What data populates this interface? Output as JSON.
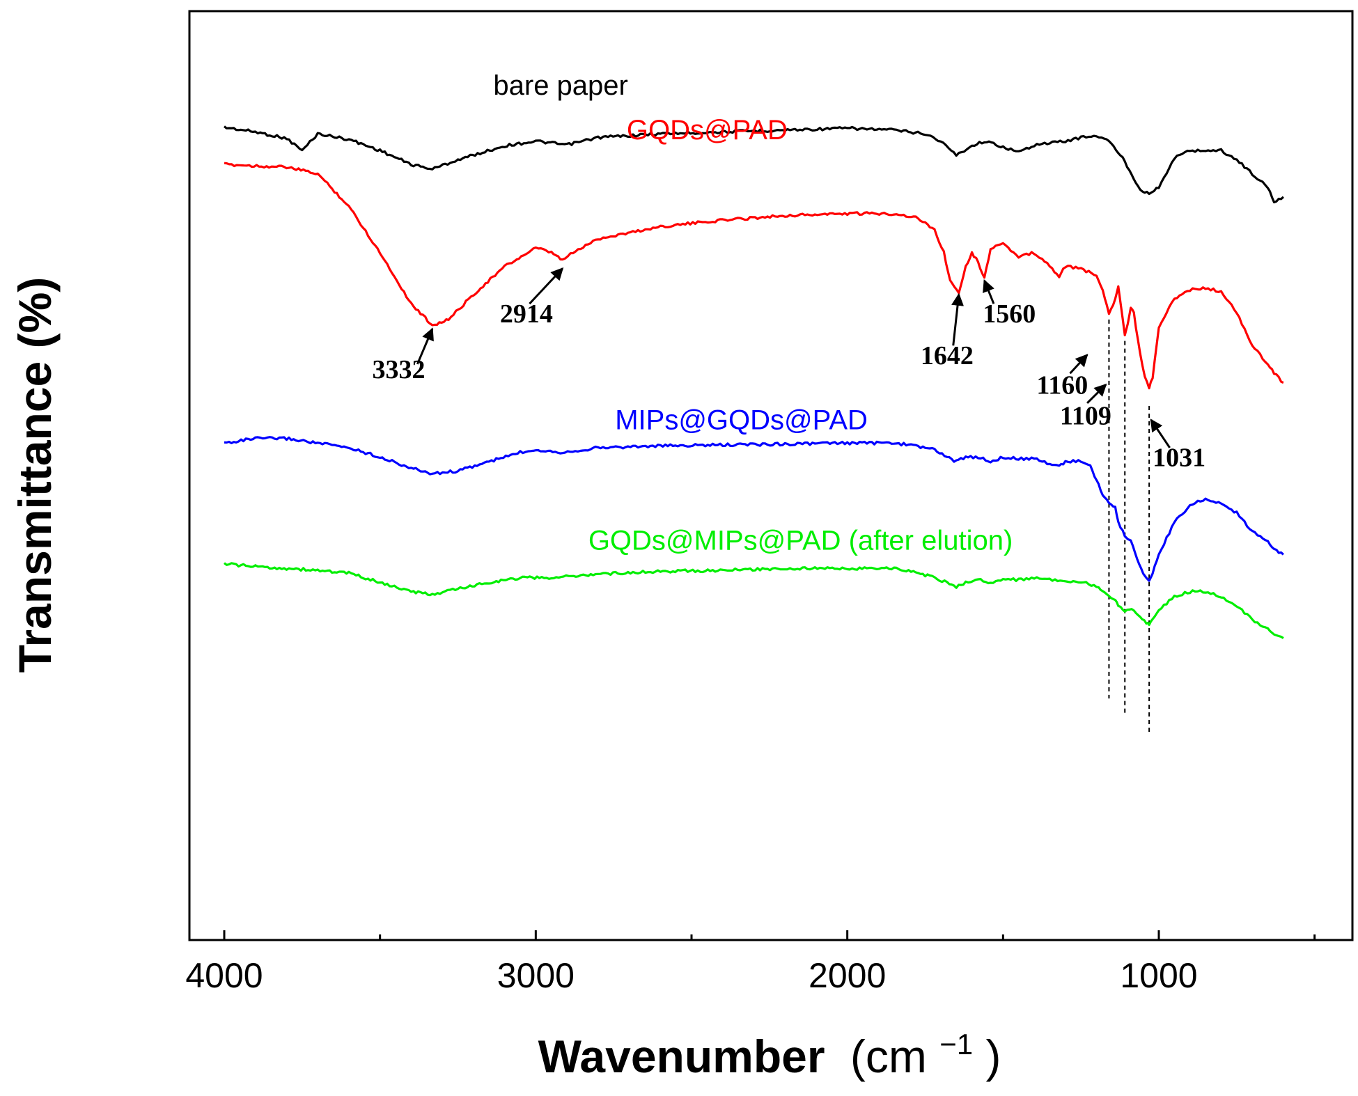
{
  "chart_data": {
    "type": "line",
    "title": "",
    "xlabel": "Wavenumber",
    "xlabel_unit": "(cm",
    "xlabel_unit_sup": "−1",
    "xlabel_unit_close": ")",
    "ylabel": "Transmittance (%)",
    "xlim": [
      4000,
      400
    ],
    "x_reversed": true,
    "x_ticks": [
      4000,
      3000,
      2000,
      1000
    ],
    "x_tick_labels": [
      "4000",
      "3000",
      "2000",
      "1000"
    ],
    "x_minor_ticks": [
      3500,
      2500,
      1500,
      500
    ],
    "y_ticks_shown": false,
    "ylim": [
      0,
      100
    ],
    "grid": false,
    "series": [
      {
        "name": "bare paper",
        "color": "#000000",
        "x": [
          4000,
          3900,
          3800,
          3750,
          3700,
          3600,
          3500,
          3400,
          3332,
          3250,
          3100,
          3000,
          2900,
          2800,
          2600,
          2400,
          2200,
          2000,
          1850,
          1750,
          1700,
          1650,
          1600,
          1560,
          1500,
          1450,
          1400,
          1350,
          1300,
          1250,
          1200,
          1160,
          1130,
          1109,
          1080,
          1060,
          1031,
          1000,
          950,
          900,
          850,
          800,
          750,
          700,
          650,
          630,
          600
        ],
        "y": [
          87.5,
          87.0,
          86.3,
          85.0,
          86.8,
          86.2,
          85.0,
          83.5,
          83.0,
          84.0,
          85.5,
          86.0,
          85.6,
          86.4,
          86.8,
          87.0,
          87.2,
          87.4,
          87.2,
          86.8,
          86.0,
          84.5,
          85.5,
          86.0,
          85.4,
          84.8,
          85.6,
          85.8,
          86.0,
          86.4,
          86.6,
          86.0,
          84.8,
          83.8,
          82.0,
          80.8,
          80.4,
          81.0,
          84.2,
          85.0,
          85.0,
          85.0,
          84.0,
          82.5,
          81.0,
          79.5,
          80.0
        ]
      },
      {
        "name": "GQDs@PAD",
        "color": "#ff0000",
        "x": [
          4000,
          3800,
          3700,
          3600,
          3500,
          3400,
          3332,
          3280,
          3200,
          3100,
          3000,
          2950,
          2914,
          2880,
          2800,
          2600,
          2400,
          2200,
          2000,
          1850,
          1780,
          1720,
          1690,
          1670,
          1642,
          1620,
          1600,
          1580,
          1560,
          1540,
          1500,
          1450,
          1400,
          1350,
          1320,
          1300,
          1250,
          1200,
          1180,
          1160,
          1140,
          1130,
          1109,
          1090,
          1080,
          1060,
          1045,
          1031,
          1020,
          1000,
          950,
          900,
          850,
          800,
          750,
          700,
          650,
          630,
          600
        ],
        "y": [
          83.5,
          83.2,
          82.5,
          79.0,
          74.0,
          68.5,
          66.2,
          66.8,
          69.5,
          72.5,
          74.5,
          74.0,
          73.2,
          74.0,
          75.5,
          76.8,
          77.5,
          78.0,
          78.2,
          78.2,
          77.8,
          76.5,
          74.0,
          71.0,
          69.8,
          72.5,
          74.0,
          73.0,
          71.2,
          74.5,
          75.0,
          73.5,
          74.0,
          72.5,
          71.5,
          72.5,
          72.3,
          71.5,
          70.0,
          67.5,
          69.0,
          70.5,
          65.0,
          68.0,
          67.5,
          63.0,
          60.5,
          59.5,
          60.5,
          66.0,
          69.0,
          70.0,
          70.2,
          69.8,
          67.5,
          64.0,
          62.0,
          61.0,
          60.0
        ]
      },
      {
        "name": "MIPs@GQDs@PAD",
        "color": "#0000ff",
        "x": [
          4000,
          3900,
          3800,
          3700,
          3600,
          3500,
          3400,
          3332,
          3250,
          3150,
          3050,
          3000,
          2914,
          2800,
          2600,
          2400,
          2200,
          2000,
          1850,
          1780,
          1720,
          1680,
          1650,
          1620,
          1580,
          1540,
          1500,
          1450,
          1400,
          1350,
          1320,
          1300,
          1250,
          1220,
          1200,
          1180,
          1160,
          1140,
          1130,
          1109,
          1090,
          1070,
          1050,
          1031,
          1020,
          1000,
          950,
          900,
          850,
          800,
          750,
          700,
          650,
          630,
          600
        ],
        "y": [
          53.5,
          54.0,
          54.0,
          53.5,
          53.0,
          52.0,
          50.8,
          50.2,
          50.5,
          51.5,
          52.5,
          52.8,
          52.5,
          53.0,
          53.2,
          53.3,
          53.4,
          53.5,
          53.5,
          53.2,
          52.8,
          52.0,
          51.5,
          52.0,
          52.0,
          51.5,
          52.0,
          51.8,
          51.8,
          51.3,
          51.0,
          51.5,
          51.6,
          51.0,
          49.5,
          48.0,
          47.0,
          46.5,
          45.0,
          43.5,
          43.0,
          41.0,
          39.5,
          38.8,
          39.5,
          41.5,
          45.0,
          46.8,
          47.5,
          47.0,
          46.0,
          44.0,
          43.0,
          42.0,
          41.5
        ]
      },
      {
        "name": "GQDs@MIPs@PAD (after elution)",
        "color": "#00ee00",
        "x": [
          4000,
          3900,
          3800,
          3700,
          3600,
          3500,
          3400,
          3332,
          3250,
          3150,
          3050,
          2950,
          2800,
          2600,
          2400,
          2200,
          2000,
          1850,
          1780,
          1720,
          1680,
          1650,
          1620,
          1580,
          1540,
          1500,
          1450,
          1400,
          1350,
          1300,
          1250,
          1200,
          1180,
          1160,
          1140,
          1130,
          1109,
          1080,
          1060,
          1040,
          1031,
          1020,
          1000,
          950,
          900,
          850,
          800,
          750,
          700,
          650,
          630,
          600
        ],
        "y": [
          40.5,
          40.2,
          40.0,
          39.8,
          39.5,
          38.5,
          37.5,
          37.2,
          37.8,
          38.5,
          39.0,
          39.0,
          39.4,
          39.7,
          39.8,
          40.0,
          40.0,
          40.0,
          39.6,
          39.0,
          38.5,
          38.0,
          38.5,
          38.8,
          38.5,
          38.8,
          38.8,
          39.0,
          38.8,
          38.5,
          38.6,
          38.0,
          37.5,
          37.0,
          36.5,
          36.0,
          35.5,
          35.5,
          34.8,
          34.2,
          34.0,
          34.5,
          35.5,
          37.0,
          37.5,
          37.5,
          37.0,
          36.0,
          34.5,
          33.5,
          33.0,
          32.5
        ]
      }
    ],
    "series_labels": [
      {
        "text": "bare paper",
        "color": "#000000",
        "x": 2920,
        "y": 91.0
      },
      {
        "text": "GQDs@PAD",
        "color": "#ff0000",
        "x": 2450,
        "y": 86.2
      },
      {
        "text": "MIPs@GQDs@PAD",
        "color": "#0000ff",
        "x": 2340,
        "y": 55.0
      },
      {
        "text": "GQDs@MIPs@PAD (after elution)",
        "color": "#00ee00",
        "x": 2150,
        "y": 42.0
      }
    ],
    "annotations": [
      {
        "text": "3332",
        "label_x": 3440,
        "label_y": 60.5,
        "arrow_from": [
          3380,
          62.0
        ],
        "arrow_to": [
          3332,
          65.8
        ]
      },
      {
        "text": "2914",
        "label_x": 3030,
        "label_y": 66.5,
        "arrow_from": [
          3020,
          68.5
        ],
        "arrow_to": [
          2914,
          72.3
        ]
      },
      {
        "text": "1642",
        "label_x": 1680,
        "label_y": 62.0,
        "arrow_from": [
          1660,
          64.0
        ],
        "arrow_to": [
          1642,
          69.5
        ]
      },
      {
        "text": "1560",
        "label_x": 1480,
        "label_y": 66.5,
        "arrow_from": [
          1530,
          68.5
        ],
        "arrow_to": [
          1560,
          71.0
        ]
      },
      {
        "text": "1160",
        "label_x": 1310,
        "label_y": 58.8,
        "arrow_from": [
          1285,
          61.0
        ],
        "arrow_to": [
          1230,
          63.0
        ]
      },
      {
        "text": "1109",
        "label_x": 1235,
        "label_y": 55.5,
        "arrow_from": [
          1230,
          57.8
        ],
        "arrow_to": [
          1170,
          59.8
        ]
      },
      {
        "text": "1031",
        "label_x": 935,
        "label_y": 51.0,
        "arrow_from": [
          965,
          53.0
        ],
        "arrow_to": [
          1025,
          56.0
        ]
      }
    ],
    "reference_lines": [
      {
        "x": 1160,
        "y_top": 66.8,
        "y_bottom": 26.0
      },
      {
        "x": 1109,
        "y_top": 64.5,
        "y_bottom": 24.2
      },
      {
        "x": 1031,
        "y_top": 57.5,
        "y_bottom": 22.3
      }
    ]
  }
}
